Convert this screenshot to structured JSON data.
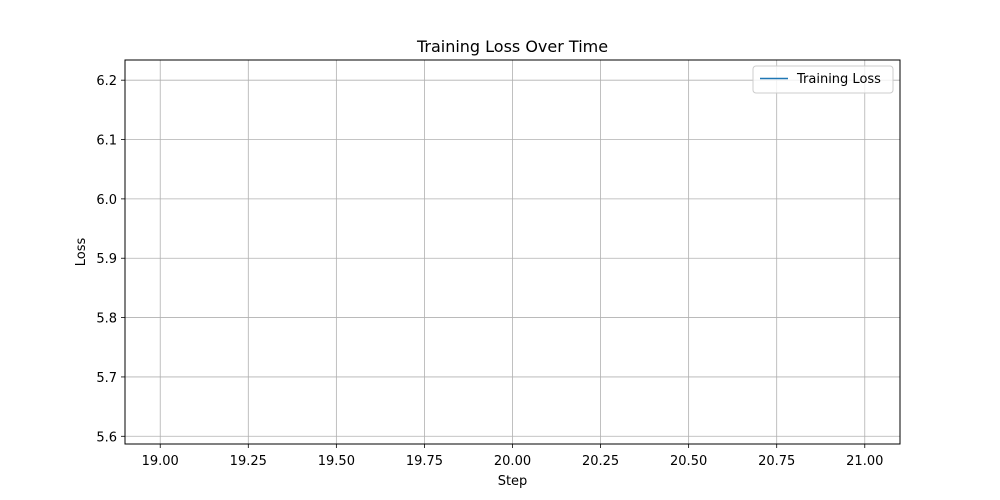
{
  "chart_data": {
    "type": "line",
    "title": "Training Loss Over Time",
    "xlabel": "Step",
    "ylabel": "Loss",
    "xlim": [
      18.9,
      21.1
    ],
    "ylim": [
      5.587,
      6.234
    ],
    "xticks": [
      19.0,
      19.25,
      19.5,
      19.75,
      20.0,
      20.25,
      20.5,
      20.75,
      21.0
    ],
    "xtick_labels": [
      "19.00",
      "19.25",
      "19.50",
      "19.75",
      "20.00",
      "20.25",
      "20.50",
      "20.75",
      "21.00"
    ],
    "yticks": [
      5.6,
      5.7,
      5.8,
      5.9,
      6.0,
      6.1,
      6.2
    ],
    "ytick_labels": [
      "5.6",
      "5.7",
      "5.8",
      "5.9",
      "6.0",
      "6.1",
      "6.2"
    ],
    "grid": true,
    "legend_position": "top-right",
    "series": [
      {
        "name": "Training Loss",
        "color": "#1f77b4",
        "x": [],
        "y": []
      }
    ]
  }
}
